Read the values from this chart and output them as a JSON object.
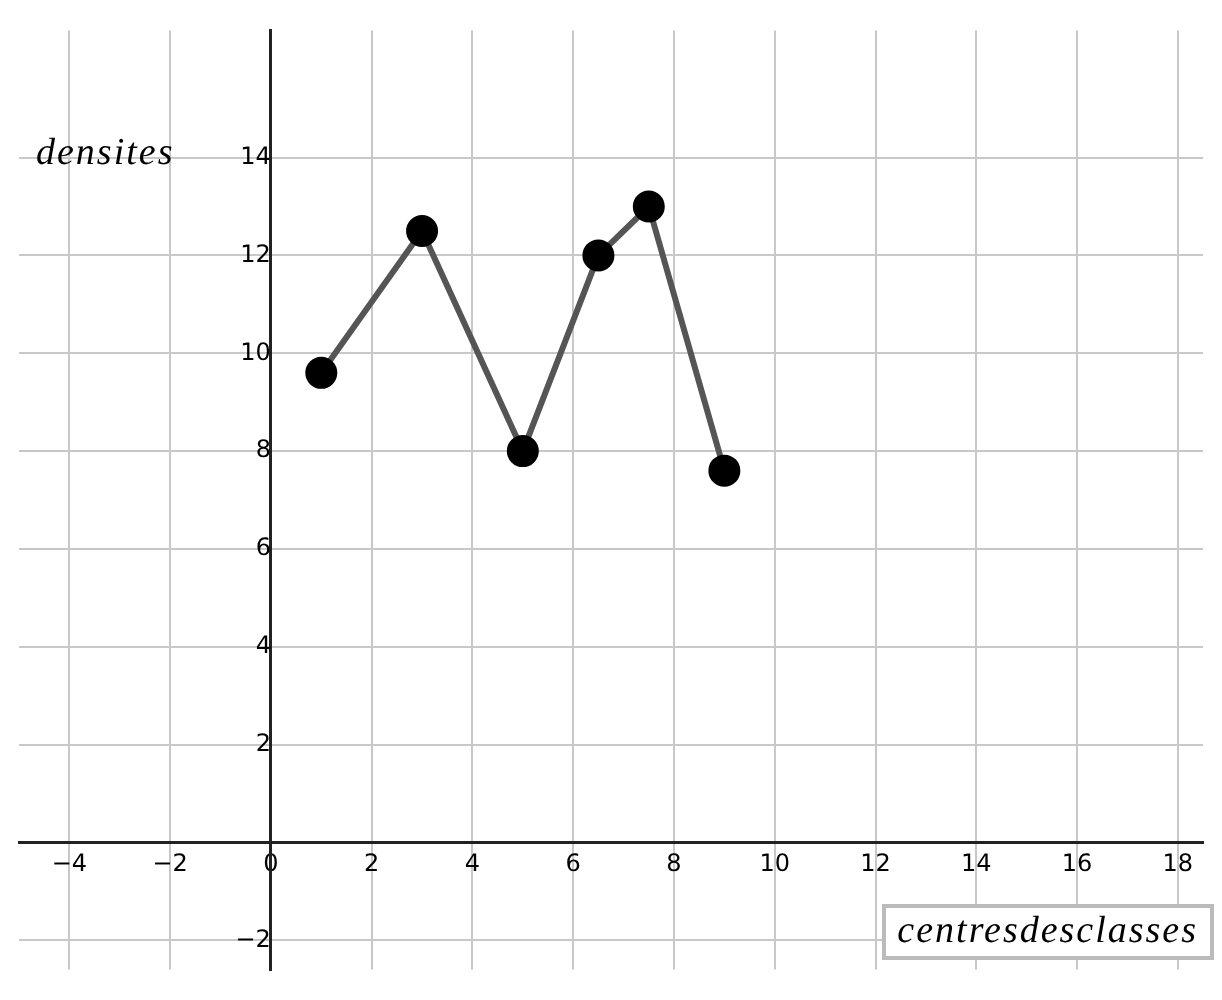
{
  "chart_data": {
    "type": "line",
    "xlabel": "centresdesclasses",
    "ylabel": "densites",
    "x": [
      1,
      3,
      5,
      6.5,
      7.5,
      9
    ],
    "series": [
      {
        "color": "#555555",
        "values": [
          9.6,
          12.5,
          8,
          12,
          13,
          7.6
        ]
      }
    ],
    "xlim": [
      -5,
      18.5
    ],
    "xticks": [
      -4,
      -2,
      0,
      2,
      4,
      6,
      8,
      10,
      12,
      14,
      16,
      18
    ],
    "ylim": [
      -2.6,
      16.6
    ],
    "yticks": [
      -2,
      {
        "value": 0,
        "label": null
      },
      2,
      4,
      6,
      8,
      10,
      12,
      14
    ],
    "grid": true,
    "marker": "circle",
    "line_style": "solid",
    "legend": false
  }
}
